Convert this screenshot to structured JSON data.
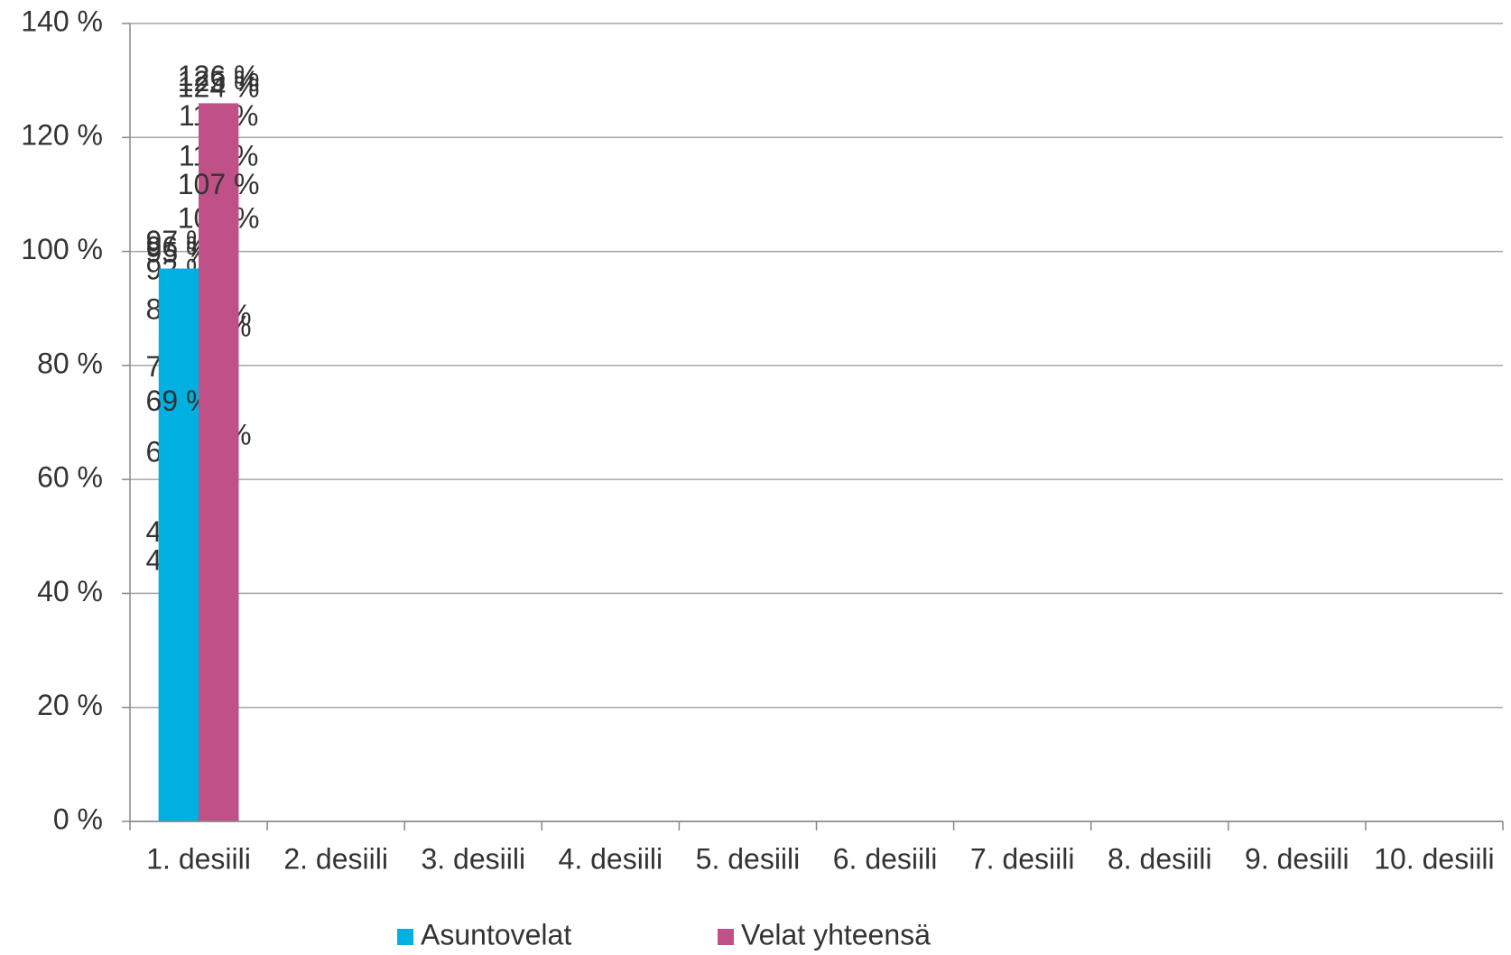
{
  "chart_data": {
    "type": "bar",
    "categories": [
      "1. desiili",
      "2. desiili",
      "3. desiili",
      "4. desiili",
      "5. desiili",
      "6. desiili",
      "7. desiili",
      "8. desiili",
      "9. desiili",
      "10. desiili"
    ],
    "series": [
      {
        "name": "Asuntovelat",
        "color": "#00b0e0",
        "values": [
          46,
          41,
          60,
          75,
          85,
          92,
          96,
          97,
          95,
          69
        ],
        "value_labels": [
          "46 %",
          "41 %",
          "60 %",
          "75 %",
          "85 %",
          "92 %",
          "96 %",
          "97 %",
          "95 %",
          "69 %"
        ]
      },
      {
        "name": "Velat yhteensä",
        "color": "#c05088",
        "values": [
          82,
          63,
          84,
          101,
          112,
          119,
          124,
          126,
          125,
          107
        ],
        "value_labels": [
          "82 %",
          "63 %",
          "84 %",
          "101 %",
          "112 %",
          "119 %",
          "124 %",
          "126 %",
          "125 %",
          "107 %"
        ]
      }
    ],
    "ylim": [
      0,
      140
    ],
    "yticks": [
      {
        "value": 0,
        "label": "0 %"
      },
      {
        "value": 20,
        "label": "20 %"
      },
      {
        "value": 40,
        "label": "40 %"
      },
      {
        "value": 60,
        "label": "60 %"
      },
      {
        "value": 80,
        "label": "80 %"
      },
      {
        "value": 100,
        "label": "100 %"
      },
      {
        "value": 120,
        "label": "120 %"
      },
      {
        "value": 140,
        "label": "140 %"
      }
    ],
    "grid": true,
    "legend": "bottom"
  }
}
